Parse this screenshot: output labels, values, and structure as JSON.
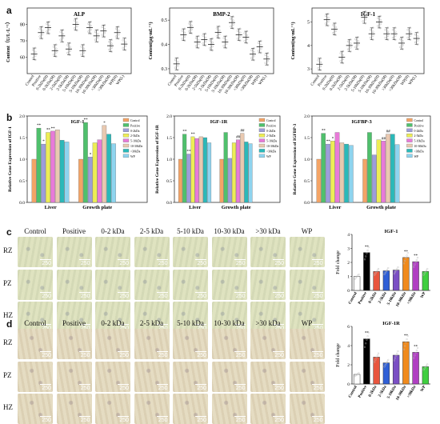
{
  "panels": {
    "a": "a",
    "b": "b",
    "c": "c",
    "d": "d"
  },
  "chart_data": [
    {
      "id": "alp",
      "type": "scatter",
      "title": "ALP",
      "ylabel": "Content（U/L·L⁻¹）",
      "ylim": [
        50,
        90
      ],
      "yticks": [
        60,
        70,
        80
      ],
      "categories": [
        "Control",
        "Positive",
        "0-2kDa(H)",
        "0-2kDa(M)",
        "2-5kDa(H)",
        "2-5kDa(M)",
        "5-10kDa(H)",
        "5-10kDa(M)",
        "10-30kDa(H)",
        "10-30kDa(M)",
        ">30kDa(H)",
        ">30kDa(M)",
        "WP(H)",
        "WP(L)"
      ],
      "values": [
        62,
        75,
        78,
        64,
        73,
        65,
        80,
        64,
        78,
        73,
        76,
        67,
        75,
        68
      ]
    },
    {
      "id": "bmp2",
      "type": "scatter",
      "title": "BMP-2",
      "ylabel": "Content(μg·mL⁻¹)",
      "ylim": [
        0.28,
        0.55
      ],
      "yticks": [
        0.3,
        0.4,
        0.5
      ],
      "categories": [
        "Control",
        "Positive",
        "0-2kDa(H)",
        "0-2kDa(M)",
        "2-5kDa(H)",
        "2-5kDa(M)",
        "5-10kDa(H)",
        "5-10kDa(M)",
        "10-30kDa(H)",
        "10-30kDa(M)",
        ">30kDa(H)",
        ">30kDa(M)",
        "WP(H)",
        "WP(L)"
      ],
      "values": [
        0.32,
        0.44,
        0.47,
        0.41,
        0.42,
        0.4,
        0.45,
        0.41,
        0.49,
        0.44,
        0.43,
        0.36,
        0.39,
        0.34
      ]
    },
    {
      "id": "igf1-content",
      "type": "scatter",
      "title": "IGF-1",
      "ylabel": "Content(ng·mL⁻¹)",
      "ylim": [
        2.8,
        5.6
      ],
      "yticks": [
        3,
        4,
        5
      ],
      "categories": [
        "Control",
        "Positive",
        "0-2kDa(H)",
        "0-2kDa(M)",
        "2-5kDa(H)",
        "2-5kDa(M)",
        "5-10kDa(H)",
        "5-10kDa(M)",
        "10-30kDa(H)",
        "10-30kDa(M)",
        ">30kDa(H)",
        ">30kDa(M)",
        "WP(H)",
        "WP(L)"
      ],
      "values": [
        3.2,
        5.1,
        4.7,
        3.5,
        4.0,
        4.1,
        5.2,
        4.5,
        5.0,
        4.5,
        4.5,
        4.1,
        4.5,
        4.3
      ]
    },
    {
      "id": "igf1-expr",
      "type": "bar",
      "title": "IGF-1",
      "ylabel": "Relative Gene Expression of IGF-1",
      "ylim": [
        0,
        2.0
      ],
      "yticks": [
        0.0,
        0.5,
        1.0,
        1.5,
        2.0
      ],
      "categories": [
        "Liver",
        "Growth plate"
      ],
      "series": [
        {
          "name": "Control",
          "values": [
            1.0,
            1.0
          ]
        },
        {
          "name": "Positive",
          "values": [
            1.72,
            1.85
          ]
        },
        {
          "name": "0-2kDa",
          "values": [
            1.35,
            1.05
          ]
        },
        {
          "name": "2-5kDa",
          "values": [
            1.62,
            1.38
          ]
        },
        {
          "name": "5-10kDa",
          "values": [
            1.65,
            1.45
          ]
        },
        {
          "name": "10-30kDa",
          "values": [
            1.68,
            1.78
          ]
        },
        {
          "name": ">30kDa",
          "values": [
            1.44,
            1.58
          ]
        },
        {
          "name": "WP",
          "values": [
            1.4,
            1.36
          ]
        }
      ],
      "labels": [
        "**",
        "*",
        "**",
        "**",
        "*",
        "**",
        "*"
      ]
    },
    {
      "id": "igf1r-expr",
      "type": "bar",
      "title": "IGF-1R",
      "ylabel": "Relative Gene Expression of IGF-1R",
      "ylim": [
        0,
        2.0
      ],
      "yticks": [
        0.0,
        0.5,
        1.0,
        1.5,
        2.0
      ],
      "categories": [
        "Liver",
        "Growth plate"
      ],
      "series": [
        {
          "name": "Control",
          "values": [
            1.0,
            1.0
          ]
        },
        {
          "name": "Positive",
          "values": [
            1.58,
            1.62
          ]
        },
        {
          "name": "0-2kDa",
          "values": [
            1.12,
            1.02
          ]
        },
        {
          "name": "2-5kDa",
          "values": [
            1.52,
            1.38
          ]
        },
        {
          "name": "5-10kDa",
          "values": [
            1.48,
            1.45
          ]
        },
        {
          "name": "10-30kDa",
          "values": [
            1.52,
            1.6
          ]
        },
        {
          "name": ">30kDa",
          "values": [
            1.5,
            1.4
          ]
        },
        {
          "name": "WP",
          "values": [
            1.38,
            1.36
          ]
        }
      ],
      "labels": [
        "**",
        "**",
        "**",
        "##",
        "##"
      ]
    },
    {
      "id": "igfbp3-expr",
      "type": "bar",
      "title": "IGFBP-3",
      "ylabel": "Relative Gene Expression of IGFBP-3",
      "ylim": [
        0,
        2.0
      ],
      "yticks": [
        0.0,
        0.5,
        1.0,
        1.5,
        2.0
      ],
      "categories": [
        "Liver",
        "Growth plate"
      ],
      "series": [
        {
          "name": "Control",
          "values": [
            1.0,
            1.0
          ]
        },
        {
          "name": "Positive",
          "values": [
            1.6,
            1.62
          ]
        },
        {
          "name": "0-2kDa",
          "values": [
            1.35,
            1.1
          ]
        },
        {
          "name": "2-5kDa",
          "values": [
            1.42,
            1.45
          ]
        },
        {
          "name": "5-10kDa",
          "values": [
            1.62,
            1.42
          ]
        },
        {
          "name": "10-30kDa",
          "values": [
            1.38,
            1.58
          ]
        },
        {
          "name": ">30kDa",
          "values": [
            1.35,
            1.58
          ]
        },
        {
          "name": "WP",
          "values": [
            1.32,
            1.34
          ]
        }
      ],
      "labels": [
        "**",
        "**",
        "*",
        "##",
        "##"
      ]
    },
    {
      "id": "igf1-fold",
      "type": "bar",
      "title": "IGF-1",
      "ylabel": "Fold change",
      "ylim": [
        0,
        4
      ],
      "yticks": [
        0,
        1,
        2,
        3,
        4
      ],
      "categories": [
        "Control",
        "Positive",
        "0-2kDa",
        "2-5kDa",
        "5-10kDa",
        "10-30kDa",
        ">30kDa",
        "WP"
      ],
      "values": [
        1.0,
        2.7,
        1.35,
        1.4,
        1.45,
        2.35,
        2.05,
        1.35
      ],
      "colors": [
        "#ffffff",
        "#000000",
        "#e8553e",
        "#2f5fd6",
        "#7b4fc4",
        "#f08a1c",
        "#b03fc2",
        "#3fcf3f"
      ],
      "labels": [
        "**",
        "**",
        "**"
      ]
    },
    {
      "id": "igf1r-fold",
      "type": "bar",
      "title": "IGF-1R",
      "ylabel": "Fold change",
      "ylim": [
        0,
        6
      ],
      "yticks": [
        0,
        2,
        4,
        6
      ],
      "categories": [
        "Control",
        "Positive",
        "0-2kDa",
        "2-5kDa",
        "5-10kDa",
        "10-30kDa",
        ">30kDa",
        "WP"
      ],
      "values": [
        1.0,
        4.7,
        2.8,
        2.2,
        3.0,
        4.4,
        3.3,
        1.8
      ],
      "colors": [
        "#ffffff",
        "#000000",
        "#e8553e",
        "#2f5fd6",
        "#7b4fc4",
        "#f08a1c",
        "#b03fc2",
        "#3fcf3f"
      ],
      "labels": [
        "**",
        "**",
        "**"
      ]
    }
  ],
  "histology": {
    "columns": [
      "Control",
      "Positive",
      "0-2 kDa",
      "2-5 kDa",
      "5-10 kDa",
      "10-30 kDa",
      ">30 kDa",
      "WP"
    ],
    "rows": [
      "RZ",
      "PZ",
      "HZ"
    ],
    "scale": "250"
  },
  "legend_colors": [
    "#f4a466",
    "#4fc06c",
    "#9d9dda",
    "#eded55",
    "#e87ad8",
    "#e9c9b0",
    "#2ab9b9",
    "#8ed4ef"
  ]
}
